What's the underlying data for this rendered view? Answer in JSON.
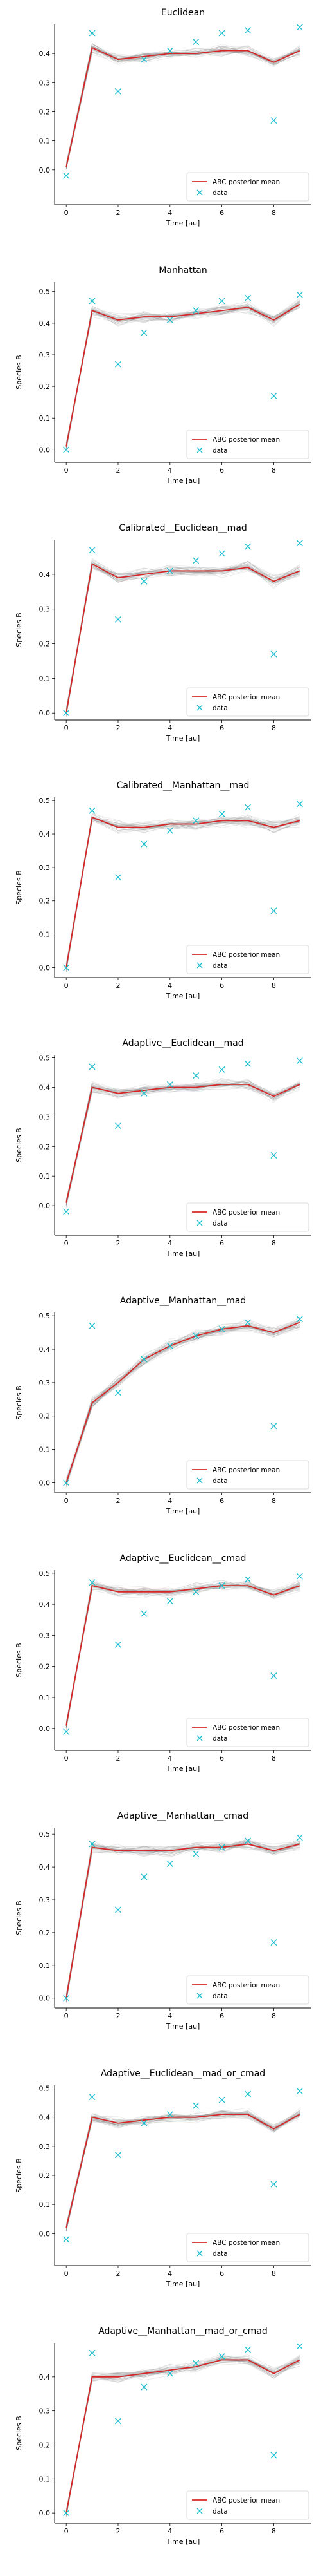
{
  "colors": {
    "posterior_mean": "#d62728",
    "data": "#17becf",
    "samples": "#808080"
  },
  "chart_data": [
    {
      "type": "line",
      "title": "Euclidean",
      "xlabel": "Time [au]",
      "ylabel": "",
      "xlim": [
        -0.45,
        9.45
      ],
      "ylim": [
        -0.12,
        0.5
      ],
      "xticks": [
        0,
        2,
        4,
        6,
        8
      ],
      "yticks": [
        0.0,
        0.1,
        0.2,
        0.3,
        0.4
      ],
      "legend": {
        "placement": "lower-right",
        "entries": [
          "ABC posterior mean",
          "data"
        ]
      },
      "series": [
        {
          "name": "ABC posterior mean",
          "kind": "line",
          "x": [
            0,
            1,
            2,
            3,
            4,
            5,
            6,
            7,
            8,
            9
          ],
          "y": [
            0.01,
            0.42,
            0.38,
            0.39,
            0.4,
            0.4,
            0.41,
            0.41,
            0.37,
            0.41
          ]
        },
        {
          "name": "data",
          "kind": "scatter",
          "x": [
            0,
            1,
            2,
            3,
            4,
            5,
            6,
            7,
            8,
            9
          ],
          "y": [
            -0.02,
            0.47,
            0.27,
            0.38,
            0.41,
            0.44,
            0.47,
            0.48,
            0.17,
            0.49
          ]
        }
      ]
    },
    {
      "type": "line",
      "title": "Manhattan",
      "xlabel": "Time [au]",
      "ylabel": "Species B",
      "xlim": [
        -0.45,
        9.45
      ],
      "ylim": [
        -0.04,
        0.53
      ],
      "xticks": [
        0,
        2,
        4,
        6,
        8
      ],
      "yticks": [
        0.0,
        0.1,
        0.2,
        0.3,
        0.4,
        0.5
      ],
      "legend": {
        "placement": "lower-right",
        "entries": [
          "ABC posterior mean",
          "data"
        ]
      },
      "series": [
        {
          "name": "ABC posterior mean",
          "kind": "line",
          "x": [
            0,
            1,
            2,
            3,
            4,
            5,
            6,
            7,
            8,
            9
          ],
          "y": [
            0.01,
            0.44,
            0.41,
            0.42,
            0.42,
            0.43,
            0.44,
            0.45,
            0.41,
            0.46
          ]
        },
        {
          "name": "data",
          "kind": "scatter",
          "x": [
            0,
            1,
            2,
            3,
            4,
            5,
            6,
            7,
            8,
            9
          ],
          "y": [
            0.0,
            0.47,
            0.27,
            0.37,
            0.41,
            0.44,
            0.47,
            0.48,
            0.17,
            0.49
          ]
        }
      ]
    },
    {
      "type": "line",
      "title": "Calibrated__Euclidean__mad",
      "xlabel": "Time [au]",
      "ylabel": "Species B",
      "xlim": [
        -0.45,
        9.45
      ],
      "ylim": [
        -0.02,
        0.5
      ],
      "xticks": [
        0,
        2,
        4,
        6,
        8
      ],
      "yticks": [
        0.0,
        0.1,
        0.2,
        0.3,
        0.4
      ],
      "legend": {
        "placement": "lower-right",
        "entries": [
          "ABC posterior mean",
          "data"
        ]
      },
      "series": [
        {
          "name": "ABC posterior mean",
          "kind": "line",
          "x": [
            0,
            1,
            2,
            3,
            4,
            5,
            6,
            7,
            8,
            9
          ],
          "y": [
            0.0,
            0.43,
            0.39,
            0.4,
            0.41,
            0.41,
            0.41,
            0.42,
            0.38,
            0.41
          ]
        },
        {
          "name": "data",
          "kind": "scatter",
          "x": [
            0,
            1,
            2,
            3,
            4,
            5,
            6,
            7,
            8,
            9
          ],
          "y": [
            0.0,
            0.47,
            0.27,
            0.38,
            0.41,
            0.44,
            0.46,
            0.48,
            0.17,
            0.49
          ]
        }
      ]
    },
    {
      "type": "line",
      "title": "Calibrated__Manhattan__mad",
      "xlabel": "Time [au]",
      "ylabel": "Species B",
      "xlim": [
        -0.45,
        9.45
      ],
      "ylim": [
        -0.03,
        0.51
      ],
      "xticks": [
        0,
        2,
        4,
        6,
        8
      ],
      "yticks": [
        0.0,
        0.1,
        0.2,
        0.3,
        0.4,
        0.5
      ],
      "legend": {
        "placement": "lower-right",
        "entries": [
          "ABC posterior mean",
          "data"
        ]
      },
      "series": [
        {
          "name": "ABC posterior mean",
          "kind": "line",
          "x": [
            0,
            1,
            2,
            3,
            4,
            5,
            6,
            7,
            8,
            9
          ],
          "y": [
            0.0,
            0.45,
            0.42,
            0.42,
            0.43,
            0.43,
            0.44,
            0.44,
            0.42,
            0.44
          ]
        },
        {
          "name": "data",
          "kind": "scatter",
          "x": [
            0,
            1,
            2,
            3,
            4,
            5,
            6,
            7,
            8,
            9
          ],
          "y": [
            0.0,
            0.47,
            0.27,
            0.37,
            0.41,
            0.44,
            0.46,
            0.48,
            0.17,
            0.49
          ]
        }
      ]
    },
    {
      "type": "line",
      "title": "Adaptive__Euclidean__mad",
      "xlabel": "Time [au]",
      "ylabel": "Species B",
      "xlim": [
        -0.45,
        9.45
      ],
      "ylim": [
        -0.1,
        0.51
      ],
      "xticks": [
        0,
        2,
        4,
        6,
        8
      ],
      "yticks": [
        0.0,
        0.1,
        0.2,
        0.3,
        0.4,
        0.5
      ],
      "legend": {
        "placement": "lower-right",
        "entries": [
          "ABC posterior mean",
          "data"
        ]
      },
      "series": [
        {
          "name": "ABC posterior mean",
          "kind": "line",
          "x": [
            0,
            1,
            2,
            3,
            4,
            5,
            6,
            7,
            8,
            9
          ],
          "y": [
            0.01,
            0.4,
            0.38,
            0.39,
            0.4,
            0.4,
            0.41,
            0.41,
            0.37,
            0.41
          ]
        },
        {
          "name": "data",
          "kind": "scatter",
          "x": [
            0,
            1,
            2,
            3,
            4,
            5,
            6,
            7,
            8,
            9
          ],
          "y": [
            -0.02,
            0.47,
            0.27,
            0.38,
            0.41,
            0.44,
            0.46,
            0.48,
            0.17,
            0.49
          ]
        }
      ]
    },
    {
      "type": "line",
      "title": "Adaptive__Manhattan__mad",
      "xlabel": "Time [au]",
      "ylabel": "Species B",
      "xlim": [
        -0.45,
        9.45
      ],
      "ylim": [
        -0.03,
        0.51
      ],
      "xticks": [
        0,
        2,
        4,
        6,
        8
      ],
      "yticks": [
        0.0,
        0.1,
        0.2,
        0.3,
        0.4,
        0.5
      ],
      "legend": {
        "placement": "lower-right",
        "entries": [
          "ABC posterior mean",
          "data"
        ]
      },
      "series": [
        {
          "name": "ABC posterior mean",
          "kind": "line",
          "x": [
            0,
            1,
            2,
            3,
            4,
            5,
            6,
            7,
            8,
            9
          ],
          "y": [
            0.0,
            0.24,
            0.3,
            0.37,
            0.41,
            0.44,
            0.46,
            0.47,
            0.45,
            0.48
          ]
        },
        {
          "name": "data",
          "kind": "scatter",
          "x": [
            0,
            1,
            2,
            3,
            4,
            5,
            6,
            7,
            8,
            9
          ],
          "y": [
            0.0,
            0.47,
            0.27,
            0.37,
            0.41,
            0.44,
            0.46,
            0.48,
            0.17,
            0.49
          ]
        }
      ]
    },
    {
      "type": "line",
      "title": "Adaptive__Euclidean__cmad",
      "xlabel": "Time [au]",
      "ylabel": "Species B",
      "xlim": [
        -0.45,
        9.45
      ],
      "ylim": [
        -0.07,
        0.51
      ],
      "xticks": [
        0,
        2,
        4,
        6,
        8
      ],
      "yticks": [
        0.0,
        0.1,
        0.2,
        0.3,
        0.4,
        0.5
      ],
      "legend": {
        "placement": "lower-right",
        "entries": [
          "ABC posterior mean",
          "data"
        ]
      },
      "series": [
        {
          "name": "ABC posterior mean",
          "kind": "line",
          "x": [
            0,
            1,
            2,
            3,
            4,
            5,
            6,
            7,
            8,
            9
          ],
          "y": [
            0.01,
            0.46,
            0.44,
            0.44,
            0.44,
            0.45,
            0.46,
            0.46,
            0.43,
            0.46
          ]
        },
        {
          "name": "data",
          "kind": "scatter",
          "x": [
            0,
            1,
            2,
            3,
            4,
            5,
            6,
            7,
            8,
            9
          ],
          "y": [
            -0.01,
            0.47,
            0.27,
            0.37,
            0.41,
            0.44,
            0.46,
            0.48,
            0.17,
            0.49
          ]
        }
      ]
    },
    {
      "type": "line",
      "title": "Adaptive__Manhattan__cmad",
      "xlabel": "Time [au]",
      "ylabel": "Species B",
      "xlim": [
        -0.45,
        9.45
      ],
      "ylim": [
        -0.03,
        0.52
      ],
      "xticks": [
        0,
        2,
        4,
        6,
        8
      ],
      "yticks": [
        0.0,
        0.1,
        0.2,
        0.3,
        0.4,
        0.5
      ],
      "legend": {
        "placement": "lower-right",
        "entries": [
          "ABC posterior mean",
          "data"
        ]
      },
      "series": [
        {
          "name": "ABC posterior mean",
          "kind": "line",
          "x": [
            0,
            1,
            2,
            3,
            4,
            5,
            6,
            7,
            8,
            9
          ],
          "y": [
            0.0,
            0.46,
            0.45,
            0.45,
            0.45,
            0.46,
            0.46,
            0.47,
            0.45,
            0.47
          ]
        },
        {
          "name": "data",
          "kind": "scatter",
          "x": [
            0,
            1,
            2,
            3,
            4,
            5,
            6,
            7,
            8,
            9
          ],
          "y": [
            0.0,
            0.47,
            0.27,
            0.37,
            0.41,
            0.44,
            0.46,
            0.48,
            0.17,
            0.49
          ]
        }
      ]
    },
    {
      "type": "line",
      "title": "Adaptive__Euclidean__mad_or_cmad",
      "xlabel": "Time [au]",
      "ylabel": "Species B",
      "xlim": [
        -0.45,
        9.45
      ],
      "ylim": [
        -0.11,
        0.51
      ],
      "xticks": [
        0,
        2,
        4,
        6,
        8
      ],
      "yticks": [
        0.0,
        0.1,
        0.2,
        0.3,
        0.4,
        0.5
      ],
      "legend": {
        "placement": "lower-right",
        "entries": [
          "ABC posterior mean",
          "data"
        ]
      },
      "series": [
        {
          "name": "ABC posterior mean",
          "kind": "line",
          "x": [
            0,
            1,
            2,
            3,
            4,
            5,
            6,
            7,
            8,
            9
          ],
          "y": [
            0.02,
            0.4,
            0.38,
            0.39,
            0.4,
            0.4,
            0.41,
            0.41,
            0.36,
            0.41
          ]
        },
        {
          "name": "data",
          "kind": "scatter",
          "x": [
            0,
            1,
            2,
            3,
            4,
            5,
            6,
            7,
            8,
            9
          ],
          "y": [
            -0.02,
            0.47,
            0.27,
            0.38,
            0.41,
            0.44,
            0.46,
            0.48,
            0.17,
            0.49
          ]
        }
      ]
    },
    {
      "type": "line",
      "title": "Adaptive__Manhattan__mad_or_cmad",
      "xlabel": "Time [au]",
      "ylabel": "Species B",
      "xlim": [
        -0.45,
        9.45
      ],
      "ylim": [
        -0.03,
        0.5
      ],
      "xticks": [
        0,
        2,
        4,
        6,
        8
      ],
      "yticks": [
        0.0,
        0.1,
        0.2,
        0.3,
        0.4
      ],
      "legend": {
        "placement": "lower-right",
        "entries": [
          "ABC posterior mean",
          "data"
        ]
      },
      "series": [
        {
          "name": "ABC posterior mean",
          "kind": "line",
          "x": [
            0,
            1,
            2,
            3,
            4,
            5,
            6,
            7,
            8,
            9
          ],
          "y": [
            0.0,
            0.4,
            0.4,
            0.41,
            0.42,
            0.43,
            0.45,
            0.45,
            0.41,
            0.45
          ]
        },
        {
          "name": "data",
          "kind": "scatter",
          "x": [
            0,
            1,
            2,
            3,
            4,
            5,
            6,
            7,
            8,
            9
          ],
          "y": [
            0.0,
            0.47,
            0.27,
            0.37,
            0.41,
            0.44,
            0.46,
            0.48,
            0.17,
            0.49
          ]
        }
      ]
    }
  ]
}
